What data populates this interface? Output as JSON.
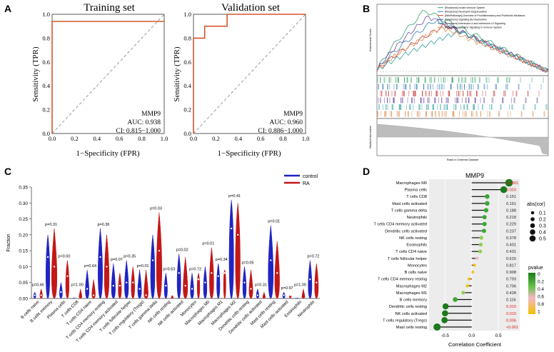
{
  "panels": {
    "A": {
      "letter": "A",
      "training": {
        "title": "Training set",
        "ylabel": "Sensitivity (TPR)",
        "xlabel": "1−Specificity (FPR)",
        "gene": "MMP9",
        "auc": "AUC: 0.938",
        "ci": "CI: 0.815−1.000"
      },
      "validation": {
        "title": "Validation set",
        "ylabel": "Sensitivity (TPR)",
        "xlabel": "1−Specificity (FPR)",
        "gene": "MMP9",
        "auc": "AUC: 0.960",
        "ci": "CI: 0.886−1.000"
      },
      "ticks": [
        "0.0",
        "0.2",
        "0.4",
        "0.6",
        "0.8",
        "1.0"
      ]
    },
    "B": {
      "letter": "B",
      "ylabel": "Enrichment Score",
      "xlabel": "Rank in Ordered Dataset",
      "ylabel_lower": "Ranked list metric",
      "legend": [
        "[Reactome] Innate Immune System",
        "[Reactome] Neutrophil Degranulation",
        "[WikiPathways] Overview of Proinflammatory and Profibrotic Mediators",
        "[Reactome] Signaling By Interleukins",
        "[Reactome] Interleukin-4 and Interleukin-13 Signaling",
        "[Reactome] Cytokine Signaling In Immune System"
      ],
      "colors": [
        "#3aa36a",
        "#3b7fb8",
        "#c23b3b",
        "#6b4fa0",
        "#2fa3a0",
        "#e0884a"
      ]
    },
    "C": {
      "letter": "C",
      "ylabel": "Fraction",
      "legend": [
        {
          "label": "control",
          "color": "#1f24c2"
        },
        {
          "label": "RA",
          "color": "#c41717"
        }
      ],
      "yticks": [
        "0.00",
        "0.05",
        "0.10",
        "0.15",
        "0.20",
        "0.25",
        "0.30",
        "0.35"
      ]
    },
    "D": {
      "letter": "D",
      "title": "MMP9",
      "xlabel": "Correlation Coefficient",
      "size_legend_title": "abs(cor)",
      "size_legend": [
        "0.1",
        "0.2",
        "0.3",
        "0.4",
        "0.5"
      ],
      "color_legend_title": "pvalue",
      "color_legend": [
        "0",
        "0.2",
        "0.4",
        "0.6",
        "0.8",
        "1"
      ],
      "xticks": [
        "-0.5",
        "0.0",
        "0.5"
      ]
    }
  },
  "chart_data": [
    {
      "type": "line",
      "title": "Training set",
      "xlabel": "1−Specificity (FPR)",
      "ylabel": "Sensitivity (TPR)",
      "series": [
        {
          "name": "ROC",
          "x": [
            0,
            0,
            1
          ],
          "y": [
            0,
            0.94,
            0.94
          ]
        }
      ],
      "xlim": [
        0,
        1
      ],
      "ylim": [
        0,
        1
      ]
    },
    {
      "type": "line",
      "title": "Validation set",
      "xlabel": "1−Specificity (FPR)",
      "ylabel": "Sensitivity (TPR)",
      "series": [
        {
          "name": "ROC",
          "x": [
            0,
            0,
            0.1,
            0.1,
            0.3,
            0.3,
            1
          ],
          "y": [
            0,
            0.8,
            0.8,
            0.9,
            0.9,
            1,
            1
          ]
        }
      ],
      "xlim": [
        0,
        1
      ],
      "ylim": [
        0,
        1
      ]
    },
    {
      "type": "violin",
      "ylabel": "Fraction",
      "ylim": [
        0,
        0.35
      ],
      "categories": [
        "B cells naive",
        "B cells memory",
        "Plasma cells",
        "T cells CD8",
        "T cells CD4 naive",
        "T cells CD4 memory resting",
        "T cells CD4 memory activated",
        "T cells follicular helper",
        "T cells regulatory (Tregs)",
        "T cells gamma delta",
        "NK cells resting",
        "NK cells activated",
        "Monocytes",
        "Macrophages M0",
        "Macrophages M1",
        "Macrophages M2",
        "Dendritic cells resting",
        "Dendritic cells activated",
        "Mast cells resting",
        "Mast cells activated",
        "Eosinophils",
        "Neutrophils"
      ],
      "pvalues": [
        "p=0.46",
        "p=0.31",
        "p=0.00",
        "p=1.00",
        "p=0.64",
        "p=0.36",
        "p=0.07",
        "p=0.35",
        "p=0.01",
        "p=0.03",
        "p=0.63",
        "p=0.02",
        "p=0.72",
        "p=0.01",
        "p=0.34",
        "p=0.41",
        "p=0.05",
        "p=0.31",
        "p=0.01",
        "p=0.97",
        "p=1.00",
        "p=0.72"
      ],
      "series": [
        {
          "name": "control",
          "medians": [
            0.01,
            0.13,
            0.02,
            0.0,
            0.03,
            0.13,
            0.04,
            0.05,
            0.03,
            0.12,
            0.04,
            0.08,
            0.03,
            0.05,
            0.07,
            0.22,
            0.05,
            0.01,
            0.12,
            0.01,
            0.0,
            0.06
          ],
          "max": [
            0.02,
            0.2,
            0.05,
            0.0,
            0.09,
            0.22,
            0.11,
            0.12,
            0.09,
            0.2,
            0.08,
            0.14,
            0.08,
            0.1,
            0.11,
            0.31,
            0.1,
            0.03,
            0.23,
            0.02,
            0.0,
            0.12
          ]
        },
        {
          "name": "RA",
          "medians": [
            0.01,
            0.1,
            0.07,
            0.0,
            0.01,
            0.1,
            0.04,
            0.05,
            0.01,
            0.15,
            0.0,
            0.04,
            0.06,
            0.08,
            0.08,
            0.2,
            0.03,
            0.0,
            0.08,
            0.01,
            0.0,
            0.05
          ],
          "max": [
            0.03,
            0.22,
            0.12,
            0.03,
            0.06,
            0.2,
            0.08,
            0.1,
            0.09,
            0.27,
            0.01,
            0.13,
            0.08,
            0.16,
            0.09,
            0.3,
            0.09,
            0.02,
            0.18,
            0.01,
            0.03,
            0.11
          ]
        }
      ]
    },
    {
      "type": "lollipop",
      "title": "MMP9",
      "xlabel": "Correlation Coefficient",
      "xlim": [
        -0.8,
        0.9
      ],
      "rows": [
        {
          "name": "Macrophages M0",
          "cor": 0.7,
          "p": "<0.001",
          "sig": true
        },
        {
          "name": "Plasma cells",
          "cor": 0.6,
          "p": "0.003",
          "sig": true
        },
        {
          "name": "T cells CD8",
          "cor": 0.29,
          "p": "0.151",
          "sig": false
        },
        {
          "name": "Mast cells activated",
          "cor": 0.29,
          "p": "0.151",
          "sig": false
        },
        {
          "name": "T cells gamma delta",
          "cor": 0.27,
          "p": "0.188",
          "sig": false
        },
        {
          "name": "Neutrophils",
          "cor": 0.24,
          "p": "0.218",
          "sig": false
        },
        {
          "name": "T cells CD4 memory activated",
          "cor": 0.24,
          "p": "0.229",
          "sig": false
        },
        {
          "name": "Dendritic cells activated",
          "cor": 0.23,
          "p": "0.237",
          "sig": false
        },
        {
          "name": "NK cells resting",
          "cor": 0.18,
          "p": "0.378",
          "sig": false
        },
        {
          "name": "Eosinophils",
          "cor": 0.17,
          "p": "0.401",
          "sig": false
        },
        {
          "name": "T cells CD4 naive",
          "cor": 0.16,
          "p": "0.431",
          "sig": false
        },
        {
          "name": "T cells follicular helper",
          "cor": 0.1,
          "p": "0.615",
          "sig": false
        },
        {
          "name": "Monocytes",
          "cor": 0.05,
          "p": "0.817",
          "sig": false
        },
        {
          "name": "B cells naive",
          "cor": 0.02,
          "p": "0.908",
          "sig": false
        },
        {
          "name": "T cells CD4 memory resting",
          "cor": -0.05,
          "p": "0.793",
          "sig": false
        },
        {
          "name": "Macrophages M2",
          "cor": -0.08,
          "p": "0.706",
          "sig": false
        },
        {
          "name": "Macrophages M1",
          "cor": -0.16,
          "p": "0.428",
          "sig": false
        },
        {
          "name": "B cells memory",
          "cor": -0.31,
          "p": "0.116",
          "sig": false
        },
        {
          "name": "Dendritic cells resting",
          "cor": -0.49,
          "p": "0.010",
          "sig": true
        },
        {
          "name": "NK cells activated",
          "cor": -0.5,
          "p": "0.010",
          "sig": true
        },
        {
          "name": "T cells regulatory (Tregs)",
          "cor": -0.51,
          "p": "0.006",
          "sig": true
        },
        {
          "name": "Mast cells resting",
          "cor": -0.65,
          "p": "<0.001",
          "sig": true
        }
      ]
    }
  ]
}
